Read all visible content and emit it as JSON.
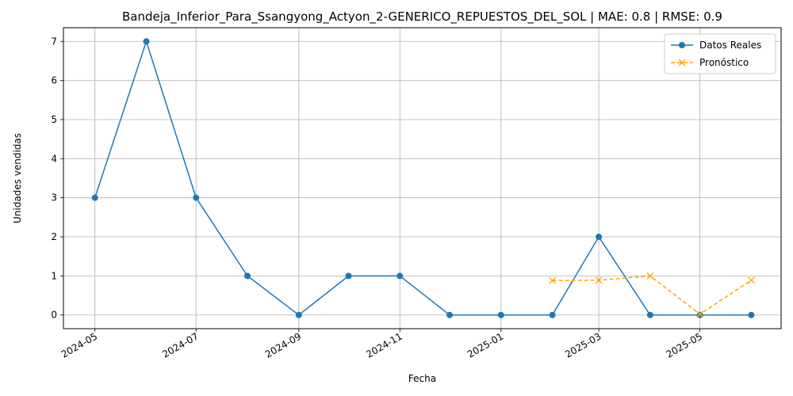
{
  "chart_data": {
    "type": "line",
    "title": "Bandeja_Inferior_Para_Ssangyong_Actyon_2-GENERICO_REPUESTOS_DEL_SOL | MAE: 0.8 | RMSE: 0.9",
    "xlabel": "Fecha",
    "ylabel": "Unidades vendidas",
    "x_ticks": [
      "2024-05",
      "2024-07",
      "2024-09",
      "2024-11",
      "2025-01",
      "2025-03",
      "2025-05"
    ],
    "y_ticks": [
      0,
      1,
      2,
      3,
      4,
      5,
      6,
      7
    ],
    "ylim": [
      -0.35,
      7.35
    ],
    "xlim": [
      "2024-04-12",
      "2025-06-19"
    ],
    "grid": true,
    "legend_position": "top-right",
    "series": [
      {
        "name": "Datos Reales",
        "color": "#1f77b4",
        "marker": "circle",
        "style": "solid",
        "x": [
          "2024-05-01",
          "2024-06-01",
          "2024-07-01",
          "2024-08-01",
          "2024-09-01",
          "2024-10-01",
          "2024-11-01",
          "2024-12-01",
          "2025-01-01",
          "2025-02-01",
          "2025-03-01",
          "2025-04-01",
          "2025-05-01",
          "2025-06-01"
        ],
        "values": [
          3,
          7,
          3,
          1,
          0,
          1,
          1,
          0,
          0,
          0,
          2,
          0,
          0,
          0
        ]
      },
      {
        "name": "Pronóstico",
        "color": "#ffa500",
        "marker": "x",
        "style": "dashed",
        "x": [
          "2025-02-01",
          "2025-03-01",
          "2025-04-01",
          "2025-05-01",
          "2025-06-01"
        ],
        "values": [
          0.88,
          0.89,
          1.0,
          0.02,
          0.89
        ]
      }
    ]
  }
}
